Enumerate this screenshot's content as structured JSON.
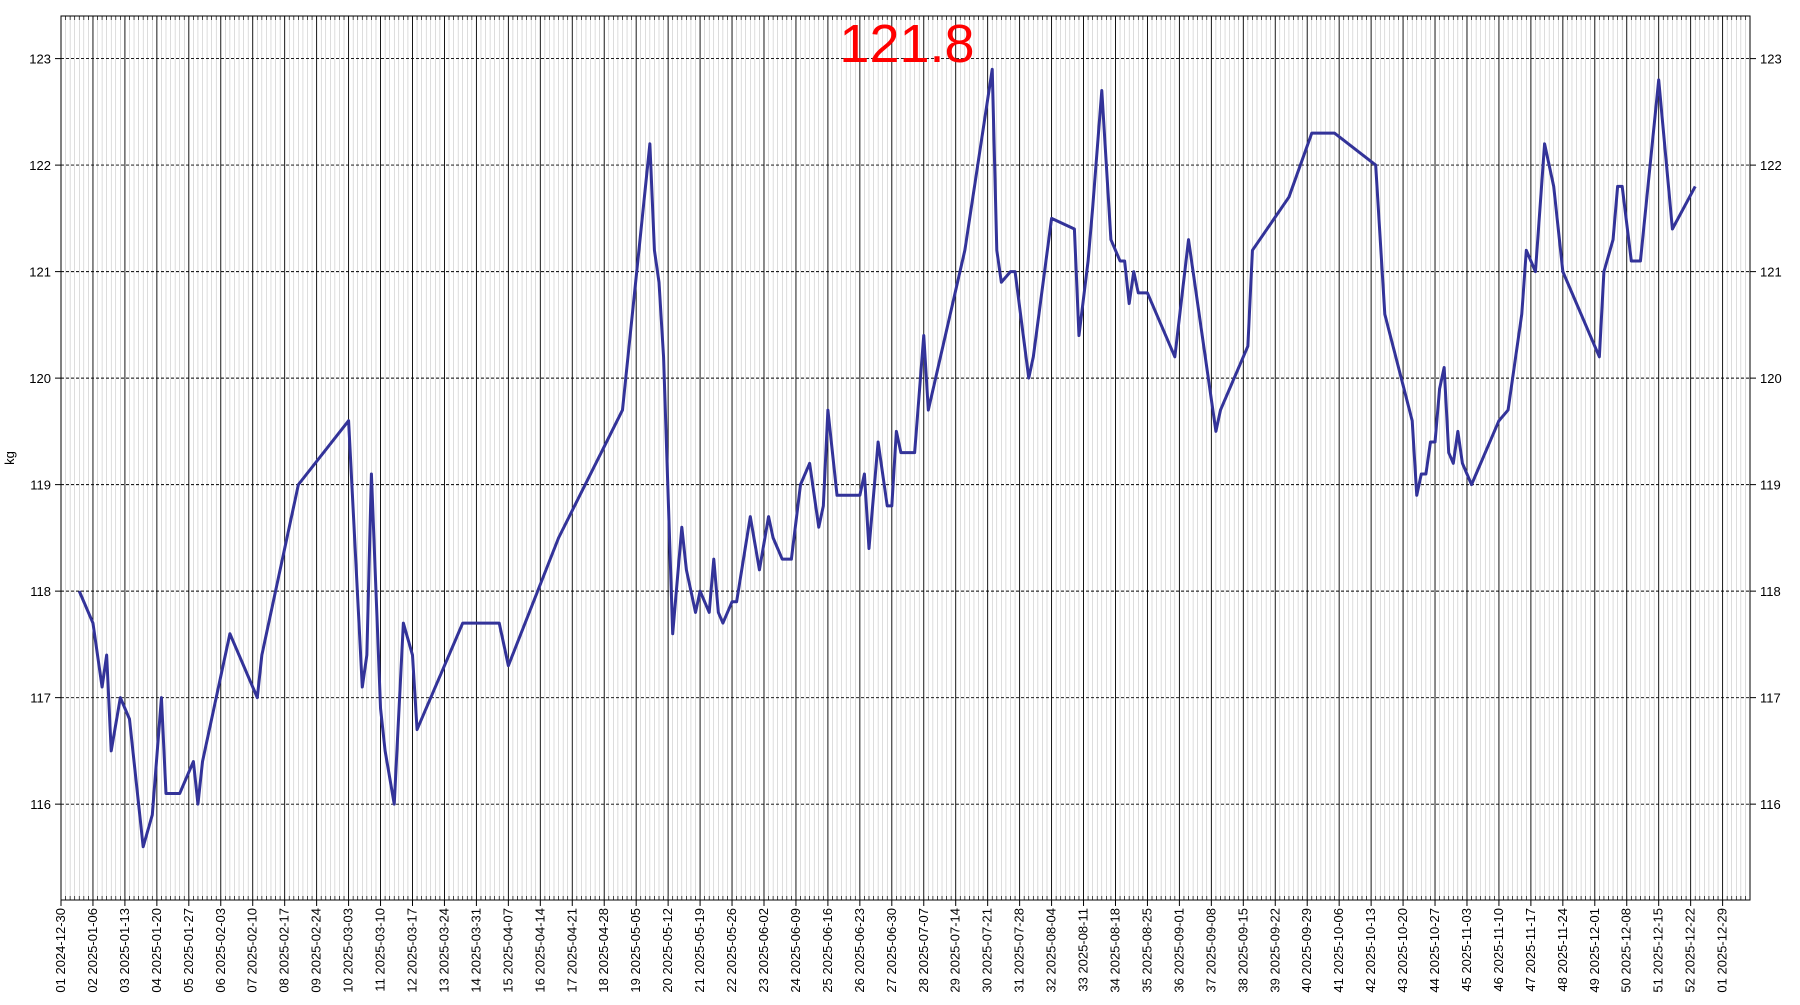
{
  "chart_data": {
    "type": "line",
    "annotation": "121.8",
    "ylabel": "kg",
    "color": "#333399",
    "annotation_color": "#ff0000",
    "x": [
      "2025-01-03",
      "2025-01-06",
      "2025-01-07",
      "2025-01-08",
      "2025-01-09",
      "2025-01-10",
      "2025-01-12",
      "2025-01-14",
      "2025-01-17",
      "2025-01-19",
      "2025-01-21",
      "2025-01-22",
      "2025-01-25",
      "2025-01-28",
      "2025-01-29",
      "2025-01-30",
      "2025-02-05",
      "2025-02-11",
      "2025-02-12",
      "2025-02-20",
      "2025-03-03",
      "2025-03-06",
      "2025-03-07",
      "2025-03-08",
      "2025-03-10",
      "2025-03-11",
      "2025-03-13",
      "2025-03-15",
      "2025-03-17",
      "2025-03-18",
      "2025-03-28",
      "2025-04-05",
      "2025-04-07",
      "2025-04-18",
      "2025-05-02",
      "2025-05-08",
      "2025-05-09",
      "2025-05-10",
      "2025-05-11",
      "2025-05-13",
      "2025-05-15",
      "2025-05-16",
      "2025-05-18",
      "2025-05-19",
      "2025-05-21",
      "2025-05-22",
      "2025-05-23",
      "2025-05-24",
      "2025-05-26",
      "2025-05-27",
      "2025-05-30",
      "2025-06-01",
      "2025-06-03",
      "2025-06-04",
      "2025-06-06",
      "2025-06-08",
      "2025-06-10",
      "2025-06-12",
      "2025-06-14",
      "2025-06-15",
      "2025-06-16",
      "2025-06-18",
      "2025-06-23",
      "2025-06-24",
      "2025-06-25",
      "2025-06-27",
      "2025-06-29",
      "2025-06-30",
      "2025-07-01",
      "2025-07-02",
      "2025-07-05",
      "2025-07-07",
      "2025-07-08",
      "2025-07-16",
      "2025-07-22",
      "2025-07-23",
      "2025-07-24",
      "2025-07-26",
      "2025-07-27",
      "2025-07-30",
      "2025-07-31",
      "2025-08-04",
      "2025-08-09",
      "2025-08-10",
      "2025-08-12",
      "2025-08-13",
      "2025-08-15",
      "2025-08-17",
      "2025-08-19",
      "2025-08-20",
      "2025-08-21",
      "2025-08-22",
      "2025-08-23",
      "2025-08-25",
      "2025-08-31",
      "2025-09-03",
      "2025-09-09",
      "2025-09-10",
      "2025-09-16",
      "2025-09-17",
      "2025-09-25",
      "2025-09-30",
      "2025-10-05",
      "2025-10-14",
      "2025-10-16",
      "2025-10-22",
      "2025-10-23",
      "2025-10-24",
      "2025-10-25",
      "2025-10-26",
      "2025-10-27",
      "2025-10-28",
      "2025-10-29",
      "2025-10-30",
      "2025-10-31",
      "2025-11-01",
      "2025-11-02",
      "2025-11-04",
      "2025-11-10",
      "2025-11-12",
      "2025-11-15",
      "2025-11-16",
      "2025-11-18",
      "2025-11-20",
      "2025-11-22",
      "2025-11-24",
      "2025-11-25",
      "2025-12-01",
      "2025-12-02",
      "2025-12-03",
      "2025-12-05",
      "2025-12-06",
      "2025-12-07",
      "2025-12-09",
      "2025-12-11",
      "2025-12-15",
      "2025-12-18",
      "2025-12-23"
    ],
    "values": [
      118,
      117.7,
      117.4,
      117.1,
      117.4,
      116.5,
      117,
      116.8,
      115.6,
      115.9,
      117,
      116.1,
      116.1,
      116.4,
      116,
      116.4,
      117.6,
      117,
      117.4,
      119,
      119.6,
      117.1,
      117.4,
      119.1,
      116.9,
      116.5,
      116,
      117.7,
      117.4,
      116.7,
      117.7,
      117.7,
      117.3,
      118.5,
      119.7,
      122.2,
      121.2,
      120.9,
      120.2,
      117.6,
      118.6,
      118.2,
      117.8,
      118,
      117.8,
      118.3,
      117.8,
      117.7,
      117.9,
      117.9,
      118.7,
      118.2,
      118.7,
      118.5,
      118.3,
      118.3,
      119,
      119.2,
      118.6,
      118.8,
      119.7,
      118.9,
      118.9,
      119.1,
      118.4,
      119.4,
      118.8,
      118.8,
      119.5,
      119.3,
      119.3,
      120.4,
      119.7,
      121.2,
      122.9,
      121.2,
      120.9,
      121,
      121,
      120,
      120.2,
      121.5,
      121.4,
      120.4,
      121.1,
      121.6,
      122.7,
      121.3,
      121.1,
      121.1,
      120.7,
      121,
      120.8,
      120.8,
      120.2,
      121.3,
      119.5,
      119.7,
      120.3,
      121.2,
      121.7,
      122.3,
      122.3,
      122,
      120.6,
      119.6,
      118.9,
      119.1,
      119.1,
      119.4,
      119.4,
      119.9,
      120.1,
      119.3,
      119.2,
      119.5,
      119.2,
      119,
      119.6,
      119.7,
      120.6,
      121.2,
      121,
      122.2,
      121.8,
      121,
      120.9,
      120.3,
      120.2,
      121,
      121.3,
      121.8,
      121.8,
      121.1,
      121.1,
      122.8,
      121.4,
      121.8
    ],
    "xlim": [
      "2024-12-30",
      "2026-01-04"
    ],
    "xticks": [
      {
        "value": "2024-12-30",
        "label": "01 2024-12-30"
      },
      {
        "value": "2025-01-06",
        "label": "02 2025-01-06"
      },
      {
        "value": "2025-01-13",
        "label": "03 2025-01-13"
      },
      {
        "value": "2025-01-20",
        "label": "04 2025-01-20"
      },
      {
        "value": "2025-01-27",
        "label": "05 2025-01-27"
      },
      {
        "value": "2025-02-03",
        "label": "06 2025-02-03"
      },
      {
        "value": "2025-02-10",
        "label": "07 2025-02-10"
      },
      {
        "value": "2025-02-17",
        "label": "08 2025-02-17"
      },
      {
        "value": "2025-02-24",
        "label": "09 2025-02-24"
      },
      {
        "value": "2025-03-03",
        "label": "10 2025-03-03"
      },
      {
        "value": "2025-03-10",
        "label": "11 2025-03-10"
      },
      {
        "value": "2025-03-17",
        "label": "12 2025-03-17"
      },
      {
        "value": "2025-03-24",
        "label": "13 2025-03-24"
      },
      {
        "value": "2025-03-31",
        "label": "14 2025-03-31"
      },
      {
        "value": "2025-04-07",
        "label": "15 2025-04-07"
      },
      {
        "value": "2025-04-14",
        "label": "16 2025-04-14"
      },
      {
        "value": "2025-04-21",
        "label": "17 2025-04-21"
      },
      {
        "value": "2025-04-28",
        "label": "18 2025-04-28"
      },
      {
        "value": "2025-05-05",
        "label": "19 2025-05-05"
      },
      {
        "value": "2025-05-12",
        "label": "20 2025-05-12"
      },
      {
        "value": "2025-05-19",
        "label": "21 2025-05-19"
      },
      {
        "value": "2025-05-26",
        "label": "22 2025-05-26"
      },
      {
        "value": "2025-06-02",
        "label": "23 2025-06-02"
      },
      {
        "value": "2025-06-09",
        "label": "24 2025-06-09"
      },
      {
        "value": "2025-06-16",
        "label": "25 2025-06-16"
      },
      {
        "value": "2025-06-23",
        "label": "26 2025-06-23"
      },
      {
        "value": "2025-06-30",
        "label": "27 2025-06-30"
      },
      {
        "value": "2025-07-07",
        "label": "28 2025-07-07"
      },
      {
        "value": "2025-07-14",
        "label": "29 2025-07-14"
      },
      {
        "value": "2025-07-21",
        "label": "30 2025-07-21"
      },
      {
        "value": "2025-07-28",
        "label": "31 2025-07-28"
      },
      {
        "value": "2025-08-04",
        "label": "32 2025-08-04"
      },
      {
        "value": "2025-08-11",
        "label": "33 2025-08-11"
      },
      {
        "value": "2025-08-18",
        "label": "34 2025-08-18"
      },
      {
        "value": "2025-08-25",
        "label": "35 2025-08-25"
      },
      {
        "value": "2025-09-01",
        "label": "36 2025-09-01"
      },
      {
        "value": "2025-09-08",
        "label": "37 2025-09-08"
      },
      {
        "value": "2025-09-15",
        "label": "38 2025-09-15"
      },
      {
        "value": "2025-09-22",
        "label": "39 2025-09-22"
      },
      {
        "value": "2025-09-29",
        "label": "40 2025-09-29"
      },
      {
        "value": "2025-10-06",
        "label": "41 2025-10-06"
      },
      {
        "value": "2025-10-13",
        "label": "42 2025-10-13"
      },
      {
        "value": "2025-10-20",
        "label": "43 2025-10-20"
      },
      {
        "value": "2025-10-27",
        "label": "44 2025-10-27"
      },
      {
        "value": "2025-11-03",
        "label": "45 2025-11-03"
      },
      {
        "value": "2025-11-10",
        "label": "46 2025-11-10"
      },
      {
        "value": "2025-11-17",
        "label": "47 2025-11-17"
      },
      {
        "value": "2025-11-24",
        "label": "48 2025-11-24"
      },
      {
        "value": "2025-12-01",
        "label": "49 2025-12-01"
      },
      {
        "value": "2025-12-08",
        "label": "50 2025-12-08"
      },
      {
        "value": "2025-12-15",
        "label": "51 2025-12-15"
      },
      {
        "value": "2025-12-22",
        "label": "52 2025-12-22"
      },
      {
        "value": "2025-12-29",
        "label": "01 2025-12-29"
      }
    ],
    "ylim": [
      115.1,
      123.4
    ],
    "yticks": [
      116,
      117,
      118,
      119,
      120,
      121,
      122,
      123
    ],
    "grid": true
  }
}
